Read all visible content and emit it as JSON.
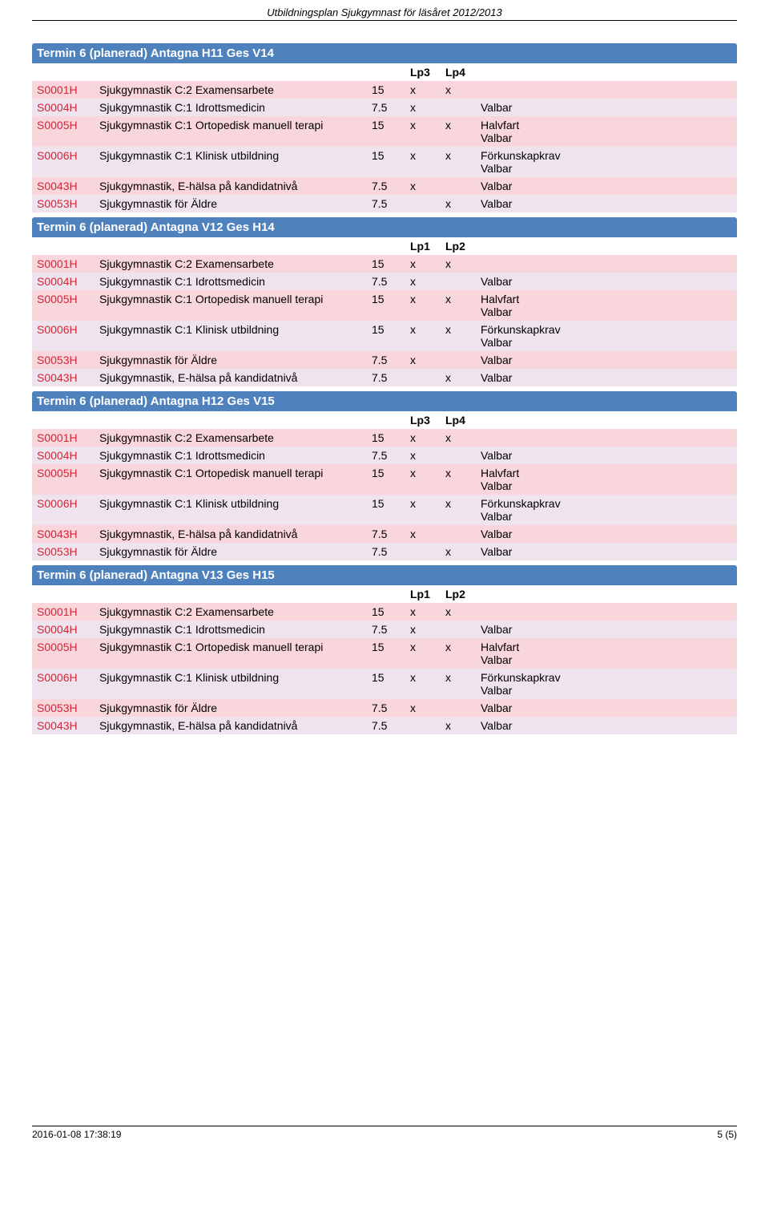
{
  "header": {
    "title": "Utbildningsplan Sjukgymnast för läsåret 2012/2013"
  },
  "footer": {
    "timestamp": "2016-01-08 17:38:19",
    "page": "5 (5)"
  },
  "colors": {
    "section_bg": "#4f81bd",
    "section_fg": "#ffffff",
    "row_a": "#f8d6dc",
    "row_b": "#efe4ee",
    "code_fg": "#d02638"
  },
  "col_widths": {
    "code": 78,
    "name": 340,
    "credits": 48,
    "lp": 44
  },
  "lp_labels": {
    "lp1": "Lp1",
    "lp2": "Lp2",
    "lp3": "Lp3",
    "lp4": "Lp4"
  },
  "sections": [
    {
      "title": "Termin 6  (planerad) Antagna H11  Ges V14",
      "lp_cols": [
        "Lp3",
        "Lp4"
      ],
      "rows": [
        {
          "code": "S0001H",
          "name": "Sjukgymnastik C:2 Examensarbete",
          "credits": "15",
          "lp1": "x",
          "lp2": "x",
          "note": ""
        },
        {
          "code": "S0004H",
          "name": "Sjukgymnastik C:1 Idrottsmedicin",
          "credits": "7.5",
          "lp1": "x",
          "lp2": "",
          "note": "Valbar"
        },
        {
          "code": "S0005H",
          "name": "Sjukgymnastik C:1 Ortopedisk manuell terapi",
          "credits": "15",
          "lp1": "x",
          "lp2": "x",
          "note": "Halvfart\nValbar"
        },
        {
          "code": "S0006H",
          "name": "Sjukgymnastik C:1 Klinisk utbildning",
          "credits": "15",
          "lp1": "x",
          "lp2": "x",
          "note": "Förkunskapkrav\nValbar"
        },
        {
          "code": "S0043H",
          "name": "Sjukgymnastik, E-hälsa på kandidatnivå",
          "credits": "7.5",
          "lp1": "x",
          "lp2": "",
          "note": "Valbar"
        },
        {
          "code": "S0053H",
          "name": "Sjukgymnastik för Äldre",
          "credits": "7.5",
          "lp1": "",
          "lp2": "x",
          "note": "Valbar"
        }
      ]
    },
    {
      "title": "Termin 6  (planerad) Antagna V12  Ges H14",
      "lp_cols": [
        "Lp1",
        "Lp2"
      ],
      "rows": [
        {
          "code": "S0001H",
          "name": "Sjukgymnastik C:2 Examensarbete",
          "credits": "15",
          "lp1": "x",
          "lp2": "x",
          "note": ""
        },
        {
          "code": "S0004H",
          "name": "Sjukgymnastik C:1 Idrottsmedicin",
          "credits": "7.5",
          "lp1": "x",
          "lp2": "",
          "note": "Valbar"
        },
        {
          "code": "S0005H",
          "name": "Sjukgymnastik C:1 Ortopedisk manuell terapi",
          "credits": "15",
          "lp1": "x",
          "lp2": "x",
          "note": "Halvfart\nValbar"
        },
        {
          "code": "S0006H",
          "name": "Sjukgymnastik C:1 Klinisk utbildning",
          "credits": "15",
          "lp1": "x",
          "lp2": "x",
          "note": "Förkunskapkrav\nValbar"
        },
        {
          "code": "S0053H",
          "name": "Sjukgymnastik för Äldre",
          "credits": "7.5",
          "lp1": "x",
          "lp2": "",
          "note": "Valbar"
        },
        {
          "code": "S0043H",
          "name": "Sjukgymnastik, E-hälsa på kandidatnivå",
          "credits": "7.5",
          "lp1": "",
          "lp2": "x",
          "note": "Valbar"
        }
      ]
    },
    {
      "title": "Termin 6  (planerad) Antagna H12  Ges V15",
      "lp_cols": [
        "Lp3",
        "Lp4"
      ],
      "rows": [
        {
          "code": "S0001H",
          "name": "Sjukgymnastik C:2 Examensarbete",
          "credits": "15",
          "lp1": "x",
          "lp2": "x",
          "note": ""
        },
        {
          "code": "S0004H",
          "name": "Sjukgymnastik C:1 Idrottsmedicin",
          "credits": "7.5",
          "lp1": "x",
          "lp2": "",
          "note": "Valbar"
        },
        {
          "code": "S0005H",
          "name": "Sjukgymnastik C:1 Ortopedisk manuell terapi",
          "credits": "15",
          "lp1": "x",
          "lp2": "x",
          "note": "Halvfart\nValbar"
        },
        {
          "code": "S0006H",
          "name": "Sjukgymnastik C:1 Klinisk utbildning",
          "credits": "15",
          "lp1": "x",
          "lp2": "x",
          "note": "Förkunskapkrav\nValbar"
        },
        {
          "code": "S0043H",
          "name": "Sjukgymnastik, E-hälsa på kandidatnivå",
          "credits": "7.5",
          "lp1": "x",
          "lp2": "",
          "note": "Valbar"
        },
        {
          "code": "S0053H",
          "name": "Sjukgymnastik för Äldre",
          "credits": "7.5",
          "lp1": "",
          "lp2": "x",
          "note": "Valbar"
        }
      ]
    },
    {
      "title": "Termin 6  (planerad) Antagna V13  Ges H15",
      "lp_cols": [
        "Lp1",
        "Lp2"
      ],
      "rows": [
        {
          "code": "S0001H",
          "name": "Sjukgymnastik C:2 Examensarbete",
          "credits": "15",
          "lp1": "x",
          "lp2": "x",
          "note": ""
        },
        {
          "code": "S0004H",
          "name": "Sjukgymnastik C:1 Idrottsmedicin",
          "credits": "7.5",
          "lp1": "x",
          "lp2": "",
          "note": "Valbar"
        },
        {
          "code": "S0005H",
          "name": "Sjukgymnastik C:1 Ortopedisk manuell terapi",
          "credits": "15",
          "lp1": "x",
          "lp2": "x",
          "note": "Halvfart\nValbar"
        },
        {
          "code": "S0006H",
          "name": "Sjukgymnastik C:1 Klinisk utbildning",
          "credits": "15",
          "lp1": "x",
          "lp2": "x",
          "note": "Förkunskapkrav\nValbar"
        },
        {
          "code": "S0053H",
          "name": "Sjukgymnastik för Äldre",
          "credits": "7.5",
          "lp1": "x",
          "lp2": "",
          "note": "Valbar"
        },
        {
          "code": "S0043H",
          "name": "Sjukgymnastik, E-hälsa på kandidatnivå",
          "credits": "7.5",
          "lp1": "",
          "lp2": "x",
          "note": "Valbar"
        }
      ]
    }
  ]
}
